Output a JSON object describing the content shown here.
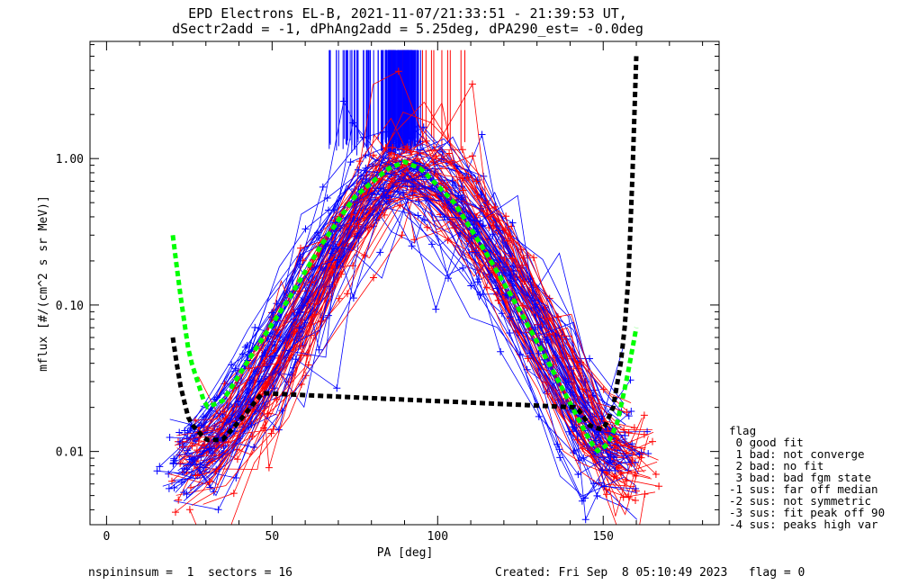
{
  "title_line1": "EPD Electrons EL-B, 2021-11-07/21:33:51 - 21:39:53 UT,",
  "title_line2": "dSectr2add = -1, dPhAng2add = 5.25deg, dPA290_est=  -0.0deg",
  "xlabel": "PA [deg]",
  "ylabel": "mflux [#/(cm^2 s sr MeV)]",
  "footer_left": "nspininsum =  1  sectors = 16",
  "footer_right": "Created: Fri Sep  8 05:10:49 2023   flag = 0",
  "legend": {
    "title": "flag",
    "items": [
      " 0 good fit",
      " 1 bad: not converge",
      " 2 bad: no fit",
      " 3 bad: bad fgm state",
      "-1 sus: far off median",
      "-2 sus: not symmetric",
      "-3 sus: fit peak off 90",
      "-4 sus: peaks high var"
    ]
  },
  "colors": {
    "blue_data": "#0000ff",
    "red_data": "#ff0000",
    "green_fit": "#00ff00",
    "black_fit": "#000000"
  },
  "chart_data": {
    "type": "line",
    "xlim": [
      -5,
      185
    ],
    "ylim_log10": [
      -2.5,
      0.8
    ],
    "y_scale": "log",
    "x_ticks": [
      0,
      50,
      100,
      150
    ],
    "x_tick_labels": [
      "0",
      "50",
      "100",
      "150"
    ],
    "y_ticks": [
      0.01,
      0.1,
      1.0
    ],
    "y_tick_labels": [
      "0.01",
      "0.10",
      "1.00"
    ],
    "series": [
      {
        "color": "blue",
        "style": "median profile (dense spaghetti of blue spectra)",
        "x": [
          18,
          25,
          32,
          40,
          50,
          60,
          70,
          80,
          88,
          94,
          100,
          110,
          120,
          130,
          140,
          148,
          155,
          160
        ],
        "y": [
          0.009,
          0.01,
          0.012,
          0.02,
          0.05,
          0.13,
          0.35,
          0.68,
          0.85,
          0.88,
          0.7,
          0.4,
          0.18,
          0.07,
          0.025,
          0.012,
          0.01,
          0.009
        ]
      },
      {
        "color": "red",
        "style": "median profile (dense spaghetti of red spectra)",
        "x": [
          20,
          28,
          35,
          45,
          55,
          65,
          75,
          85,
          90,
          95,
          105,
          115,
          125,
          135,
          145,
          152,
          158,
          165
        ],
        "y": [
          0.008,
          0.009,
          0.011,
          0.025,
          0.06,
          0.16,
          0.42,
          0.8,
          0.92,
          0.85,
          0.55,
          0.28,
          0.12,
          0.045,
          0.016,
          0.01,
          0.009,
          0.01
        ]
      },
      {
        "color": "green",
        "style": "dashed fit",
        "x": [
          20,
          22,
          25,
          30,
          35,
          45,
          55,
          65,
          75,
          85,
          90,
          95,
          105,
          115,
          125,
          135,
          145,
          148,
          151,
          154,
          157,
          160
        ],
        "y": [
          0.3,
          0.13,
          0.045,
          0.02,
          0.022,
          0.05,
          0.11,
          0.26,
          0.55,
          0.85,
          0.95,
          0.85,
          0.5,
          0.22,
          0.09,
          0.035,
          0.013,
          0.01,
          0.011,
          0.015,
          0.03,
          0.07
        ]
      },
      {
        "color": "black",
        "style": "dashed fit",
        "x": [
          20,
          22,
          25,
          30,
          35,
          40,
          47,
          142,
          146,
          150,
          153,
          156,
          158,
          160
        ],
        "y": [
          0.06,
          0.03,
          0.016,
          0.012,
          0.012,
          0.016,
          0.025,
          0.02,
          0.015,
          0.014,
          0.02,
          0.05,
          0.2,
          5
        ]
      }
    ],
    "spikes": {
      "blue_x_range": [
        67,
        95
      ],
      "red_x_range": [
        83,
        109
      ],
      "top_y": 5.5,
      "bottom_y_range": [
        1.05,
        1.4
      ]
    }
  }
}
